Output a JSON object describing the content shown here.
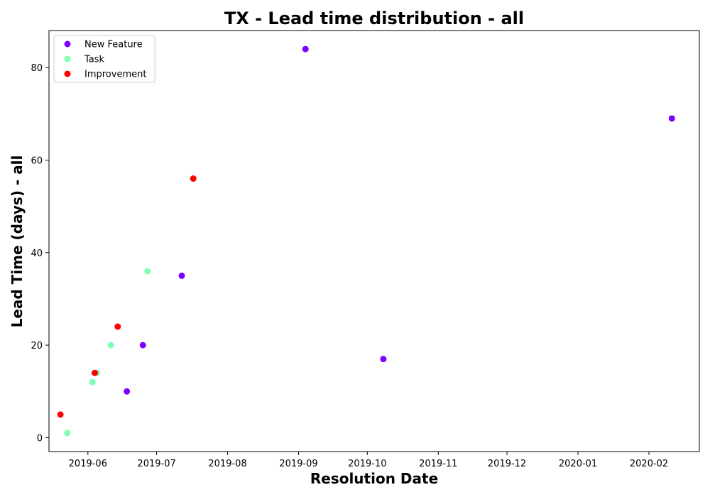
{
  "chart_data": {
    "type": "scatter",
    "title": "TX - Lead time distribution - all",
    "xlabel": "Resolution Date",
    "ylabel": "Lead Time (days) - all",
    "xlim": [
      "2019-05-15",
      "2020-02-23"
    ],
    "ylim": [
      -3,
      88
    ],
    "x_ticks": [
      "2019-06",
      "2019-07",
      "2019-08",
      "2019-09",
      "2019-10",
      "2019-11",
      "2019-12",
      "2020-01",
      "2020-02"
    ],
    "y_ticks": [
      0,
      20,
      40,
      60,
      80
    ],
    "grid": false,
    "legend": {
      "placement": "top-left"
    },
    "series": [
      {
        "name": "New Feature",
        "color": "#8000ff",
        "points": [
          {
            "x": "2019-06-18",
            "y": 10
          },
          {
            "x": "2019-06-25",
            "y": 20
          },
          {
            "x": "2019-07-12",
            "y": 35
          },
          {
            "x": "2019-09-04",
            "y": 84
          },
          {
            "x": "2019-10-08",
            "y": 17
          },
          {
            "x": "2020-02-11",
            "y": 69
          }
        ]
      },
      {
        "name": "Task",
        "color": "#80ffb4",
        "points": [
          {
            "x": "2019-05-23",
            "y": 1
          },
          {
            "x": "2019-06-03",
            "y": 12
          },
          {
            "x": "2019-06-05",
            "y": 14
          },
          {
            "x": "2019-06-11",
            "y": 20
          },
          {
            "x": "2019-06-27",
            "y": 36
          }
        ]
      },
      {
        "name": "Improvement",
        "color": "#ff0000",
        "points": [
          {
            "x": "2019-05-20",
            "y": 5
          },
          {
            "x": "2019-06-04",
            "y": 14
          },
          {
            "x": "2019-06-14",
            "y": 24
          },
          {
            "x": "2019-07-17",
            "y": 56
          }
        ]
      }
    ]
  }
}
